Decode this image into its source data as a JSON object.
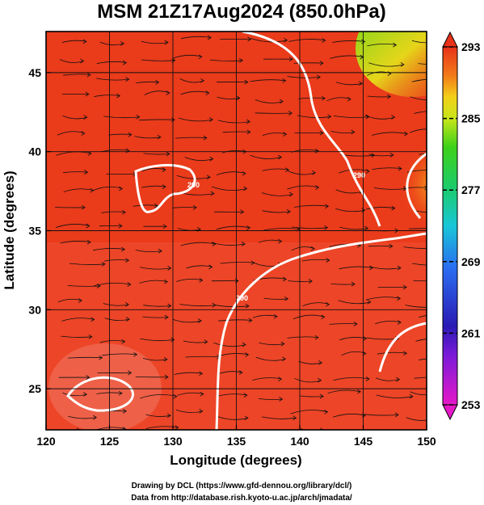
{
  "chart_data": {
    "type": "heatmap",
    "title": "MSM 21Z17Aug2024 (850.0hPa)",
    "xlabel": "Longitude (degrees)",
    "ylabel": "Latitude  (degrees)",
    "xlim": [
      120,
      150
    ],
    "ylim": [
      22.4,
      47.6
    ],
    "xticks": [
      120,
      125,
      130,
      135,
      140,
      145,
      150
    ],
    "yticks": [
      25,
      30,
      35,
      40,
      45
    ],
    "grid": true,
    "colorbar": {
      "ticks": [
        293,
        285,
        277,
        269,
        261,
        253
      ],
      "range": [
        253,
        293
      ]
    },
    "contour_labels": [
      "290",
      "290",
      "290",
      "290"
    ]
  },
  "credits": {
    "line1": "Drawing by DCL (https://www.gfd-dennou.org/library/dcl/)",
    "line2": "Data from http://database.rish.kyoto-u.ac.jp/arch/jmadata/"
  }
}
